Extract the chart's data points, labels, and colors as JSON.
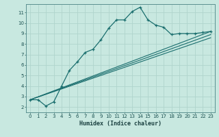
{
  "xlabel": "Humidex (Indice chaleur)",
  "bg_color": "#c8e8e0",
  "grid_color": "#b0d4cc",
  "line_color": "#1a6e6e",
  "xlim": [
    -0.5,
    23.5
  ],
  "ylim": [
    1.5,
    11.8
  ],
  "xticks": [
    0,
    1,
    2,
    3,
    4,
    5,
    6,
    7,
    8,
    9,
    10,
    11,
    12,
    13,
    14,
    15,
    16,
    17,
    18,
    19,
    20,
    21,
    22,
    23
  ],
  "yticks": [
    2,
    3,
    4,
    5,
    6,
    7,
    8,
    9,
    10,
    11
  ],
  "series_main": {
    "x": [
      0,
      1,
      2,
      3,
      4,
      5,
      6,
      7,
      8,
      9,
      10,
      11,
      12,
      13,
      14,
      15,
      16,
      17,
      18,
      19,
      20,
      21,
      22,
      23
    ],
    "y": [
      2.7,
      2.7,
      2.1,
      2.5,
      4.0,
      5.5,
      6.3,
      7.2,
      7.5,
      8.4,
      9.5,
      10.3,
      10.3,
      11.1,
      11.5,
      10.3,
      9.8,
      9.6,
      8.9,
      9.0,
      9.0,
      9.0,
      9.1,
      9.2
    ]
  },
  "series_lines": [
    {
      "x": [
        0,
        23
      ],
      "y": [
        2.7,
        9.2
      ]
    },
    {
      "x": [
        0,
        23
      ],
      "y": [
        2.7,
        8.9
      ]
    },
    {
      "x": [
        0,
        23
      ],
      "y": [
        2.7,
        8.6
      ]
    }
  ]
}
